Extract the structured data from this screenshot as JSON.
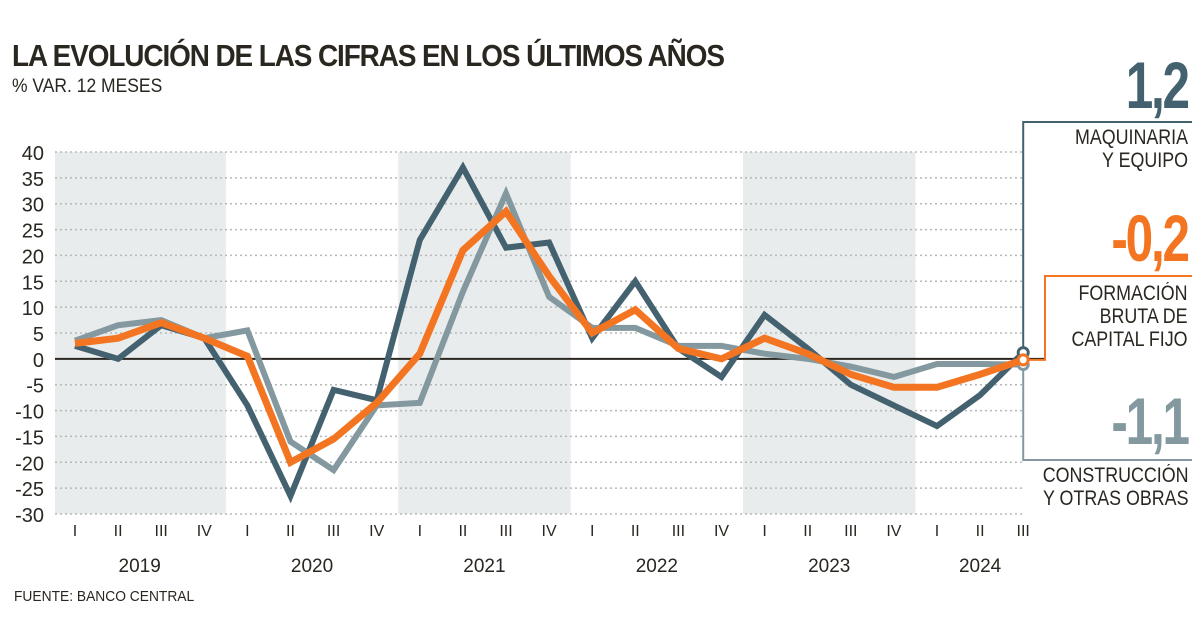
{
  "chart_data": {
    "type": "line",
    "title": "LA EVOLUCIÓN DE LAS CIFRAS EN LOS ÚLTIMOS AÑOS",
    "subtitle": "% VAR. 12 MESES",
    "source": "FUENTE: BANCO CENTRAL",
    "ylim": [
      -30,
      40
    ],
    "yticks": [
      40,
      35,
      30,
      25,
      20,
      15,
      10,
      5,
      0,
      -5,
      -10,
      -15,
      -20,
      -25,
      -30
    ],
    "grid": true,
    "quarters": [
      "I",
      "II",
      "III",
      "IV",
      "I",
      "II",
      "III",
      "IV",
      "I",
      "II",
      "III",
      "IV",
      "I",
      "II",
      "III",
      "IV",
      "I",
      "II",
      "III",
      "IV",
      "I",
      "II",
      "III"
    ],
    "years": [
      {
        "label": "2019",
        "start": 0,
        "end": 3,
        "shaded": true
      },
      {
        "label": "2020",
        "start": 4,
        "end": 7,
        "shaded": false
      },
      {
        "label": "2021",
        "start": 8,
        "end": 11,
        "shaded": true
      },
      {
        "label": "2022",
        "start": 12,
        "end": 15,
        "shaded": false
      },
      {
        "label": "2023",
        "start": 16,
        "end": 19,
        "shaded": true
      },
      {
        "label": "2024",
        "start": 20,
        "end": 22,
        "shaded": false
      }
    ],
    "series": [
      {
        "name": "MAQUINARIA Y EQUIPO",
        "name_lines": [
          "MAQUINARIA",
          "Y EQUIPO"
        ],
        "last_label": "1,2",
        "color": "#44616f",
        "values": [
          2.5,
          0,
          6.5,
          4,
          -9,
          -26.5,
          -6,
          -8,
          23,
          37,
          21.5,
          22.5,
          4,
          15,
          2,
          -3.5,
          8.5,
          2,
          -5,
          -9,
          -13,
          -7,
          1.2
        ]
      },
      {
        "name": "CONSTRUCCIÓN Y OTRAS OBRAS",
        "name_lines": [
          "CONSTRUCCIÓN",
          "Y OTRAS OBRAS"
        ],
        "last_label": "-1,1",
        "color": "#83999f",
        "values": [
          3.5,
          6.5,
          7.5,
          4,
          5.5,
          -16,
          -21.5,
          -9,
          -8.5,
          13,
          32,
          12,
          6,
          6,
          2.5,
          2.5,
          1,
          0,
          -1.5,
          -3.5,
          -1,
          -1,
          -1.1
        ]
      },
      {
        "name": "FORMACIÓN BRUTA DE CAPITAL FIJO",
        "name_lines": [
          "FORMACIÓN",
          "BRUTA DE",
          "CAPITAL FIJO"
        ],
        "last_label": "-0,2",
        "color": "#f47521",
        "values": [
          3,
          4,
          7,
          4,
          0.5,
          -20,
          -15.5,
          -8.5,
          1,
          21,
          28.5,
          16,
          5,
          9.5,
          2,
          0,
          4,
          1,
          -3,
          -5.5,
          -5.5,
          -3,
          -0.2
        ]
      }
    ]
  }
}
